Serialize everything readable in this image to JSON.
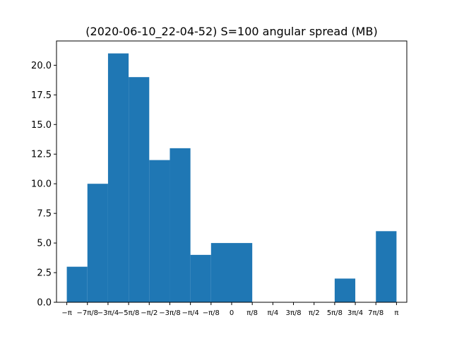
{
  "chart_data": {
    "type": "bar",
    "title": "(2020-06-10_22-04-52) S=100 angular spread (MB)",
    "xlabel": "",
    "ylabel": "",
    "bin_edges": [
      -3.1416,
      -2.7489,
      -2.3562,
      -1.9635,
      -1.5708,
      -1.1781,
      -0.7854,
      -0.3927,
      0.0,
      0.3927,
      0.7854,
      1.1781,
      1.5708,
      1.9635,
      2.3562,
      2.7489,
      3.1416
    ],
    "values": [
      3,
      10,
      21,
      19,
      12,
      13,
      4,
      5,
      5,
      0,
      0,
      0,
      0,
      2,
      0,
      6
    ],
    "bar_color": "#1f77b4",
    "xlim": [
      -3.3379,
      3.3379
    ],
    "ylim": [
      0,
      22.05
    ],
    "xticks": [
      {
        "value": -3.1416,
        "label": "−π"
      },
      {
        "value": -2.7489,
        "label": "−7π/8"
      },
      {
        "value": -2.3562,
        "label": "−3π/4"
      },
      {
        "value": -1.9635,
        "label": "−5π/8"
      },
      {
        "value": -1.5708,
        "label": "−π/2"
      },
      {
        "value": -1.1781,
        "label": "−3π/8"
      },
      {
        "value": -0.7854,
        "label": "−π/4"
      },
      {
        "value": -0.3927,
        "label": "−π/8"
      },
      {
        "value": 0.0,
        "label": "0"
      },
      {
        "value": 0.3927,
        "label": "π/8"
      },
      {
        "value": 0.7854,
        "label": "π/4"
      },
      {
        "value": 1.1781,
        "label": "3π/8"
      },
      {
        "value": 1.5708,
        "label": "π/2"
      },
      {
        "value": 1.9635,
        "label": "5π/8"
      },
      {
        "value": 2.3562,
        "label": "3π/4"
      },
      {
        "value": 2.7489,
        "label": "7π/8"
      },
      {
        "value": 3.1416,
        "label": "π"
      }
    ],
    "yticks": [
      {
        "value": 0,
        "label": "0.0"
      },
      {
        "value": 2.5,
        "label": "2.5"
      },
      {
        "value": 5,
        "label": "5.0"
      },
      {
        "value": 7.5,
        "label": "7.5"
      },
      {
        "value": 10,
        "label": "10.0"
      },
      {
        "value": 12.5,
        "label": "12.5"
      },
      {
        "value": 15,
        "label": "15.0"
      },
      {
        "value": 17.5,
        "label": "17.5"
      },
      {
        "value": 20,
        "label": "20.0"
      }
    ],
    "grid": false
  }
}
